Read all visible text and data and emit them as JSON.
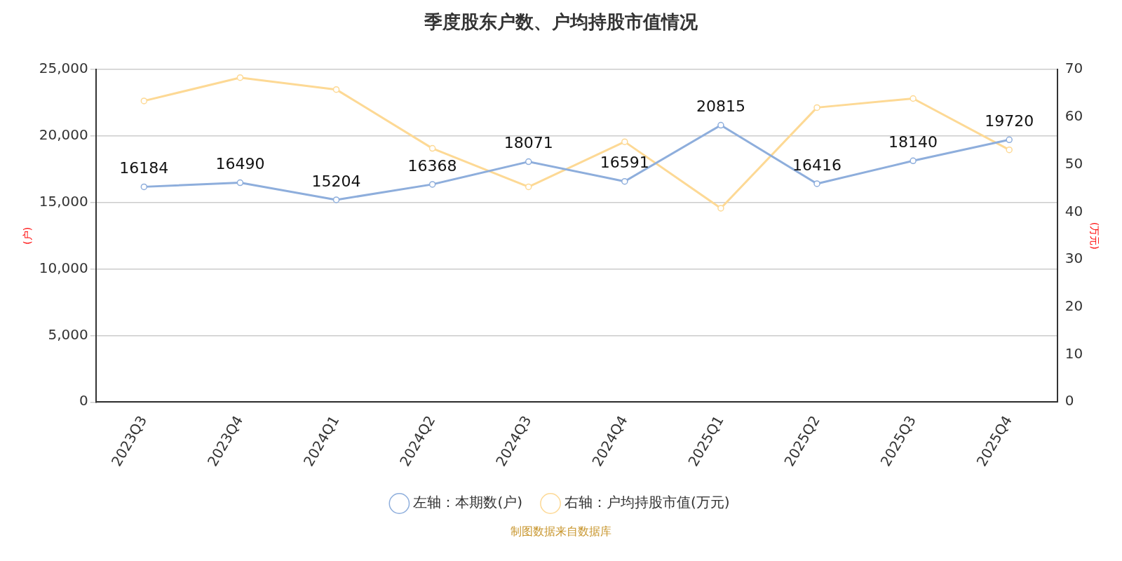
{
  "chart_data": {
    "type": "line",
    "title": "季度股东户数、户均持股市值情况",
    "categories": [
      "2023Q3",
      "2023Q4",
      "2024Q1",
      "2024Q2",
      "2024Q3",
      "2024Q4",
      "2025Q1",
      "2025Q2",
      "2025Q3",
      "2025Q4"
    ],
    "series": [
      {
        "name": "左轴：本期数(户)",
        "color": "#8eaedc",
        "values": [
          16184,
          16490,
          15204,
          16368,
          18071,
          16591,
          20815,
          16416,
          18140,
          19720
        ],
        "value_labels": [
          "16184",
          "16490",
          "15204",
          "16368",
          "18071",
          "16591",
          "20815",
          "16416",
          "18140",
          "19720"
        ]
      },
      {
        "name": "右轴：户均持股市值(万元)",
        "color": "#fdd995",
        "axis": "y2",
        "values": [
          63.4,
          68.3,
          65.8,
          53.4,
          45.3,
          54.8,
          40.8,
          62.0,
          63.9,
          53.1
        ]
      }
    ],
    "ylabel": "(户)",
    "y2label": "(万元)",
    "ylim": [
      0,
      25000
    ],
    "yticks": [
      {
        "value": 0,
        "label": "0"
      },
      {
        "value": 5000,
        "label": "5,000"
      },
      {
        "value": 10000,
        "label": "10,000"
      },
      {
        "value": 15000,
        "label": "15,000"
      },
      {
        "value": 20000,
        "label": "20,000"
      },
      {
        "value": 25000,
        "label": "25,000"
      }
    ],
    "y2lim": [
      0,
      70
    ],
    "y2ticks": [
      0,
      10,
      20,
      30,
      40,
      50,
      60,
      70
    ],
    "grid": "y",
    "legend": "bottom",
    "marker": "circle",
    "line_style": "solid",
    "annotations": [
      "制图数据来自数据库"
    ]
  }
}
